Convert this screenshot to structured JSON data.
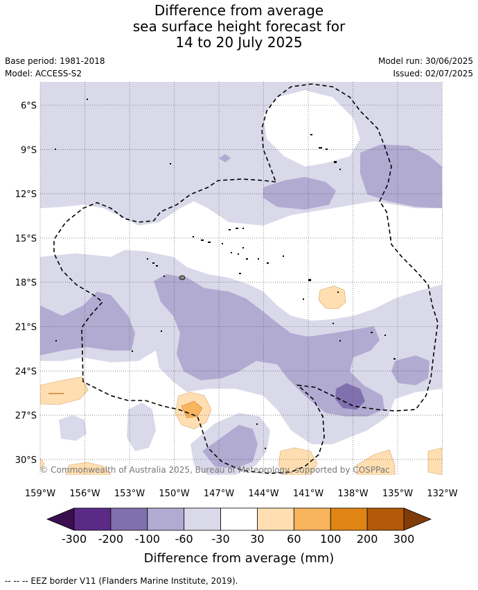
{
  "title": {
    "line1": "Difference from average",
    "line2": "sea surface height forecast for",
    "line3": "14 to 20 July 2025"
  },
  "meta": {
    "base_period": "Base period: 1981-2018",
    "model": "Model: ACCESS-S2",
    "model_run": "Model run: 30/06/2025",
    "issued": "Issued: 02/07/2025"
  },
  "map": {
    "lat_labels": [
      "6°S",
      "9°S",
      "12°S",
      "15°S",
      "18°S",
      "21°S",
      "24°S",
      "27°S",
      "30°S"
    ],
    "lon_labels": [
      "159°W",
      "156°W",
      "153°W",
      "150°W",
      "147°W",
      "144°W",
      "141°W",
      "138°W",
      "135°W",
      "132°W"
    ],
    "copyright": "© Commonwealth of Australia 2025, Bureau of Meteorology, supported by COSPPac"
  },
  "colorbar": {
    "ticks": [
      "-300",
      "-200",
      "-100",
      "-60",
      "-30",
      "30",
      "60",
      "100",
      "200",
      "300"
    ],
    "label": "Difference from average (mm)",
    "colors": {
      "below": "#3b0f4f",
      "bins": [
        "#5b2a86",
        "#8070ad",
        "#b1abd2",
        "#d9d9ea",
        "#ffffff",
        "#ffdfb2",
        "#f9b45e",
        "#e08414",
        "#b35908"
      ],
      "above": "#7f3b08"
    }
  },
  "footer": {
    "eez": "--  --  -- EEZ border V11 (Flanders Marine Institute, 2019)."
  }
}
